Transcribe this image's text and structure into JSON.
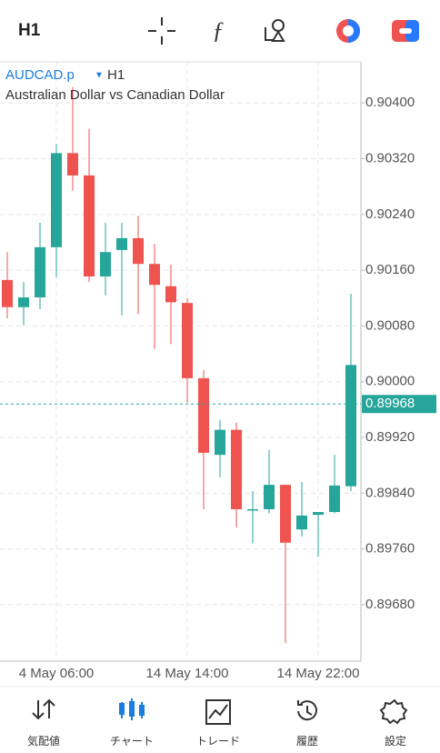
{
  "top_bar": {
    "timeframe": "H1"
  },
  "chart_data": {
    "type": "candlestick",
    "symbol": "AUDCAD.p",
    "timeframe": "H1",
    "subtitle": "Australian Dollar vs Canadian Dollar",
    "categories": [
      null,
      null,
      null,
      "4 May 06:00",
      null,
      null,
      null,
      null,
      null,
      null,
      null,
      "14 May 14:00",
      null,
      null,
      null,
      null,
      null,
      null,
      null,
      "14 May 22:00",
      null,
      null
    ],
    "open": [
      0.90146,
      0.90107,
      0.90121,
      0.90193,
      0.90328,
      0.90296,
      0.90151,
      0.90189,
      0.90206,
      0.90169,
      0.90137,
      0.90113,
      0.90005,
      0.89895,
      0.89931,
      0.89815,
      0.89817,
      0.89852,
      0.89788,
      0.89809,
      0.89813,
      0.8985
    ],
    "high": [
      0.90186,
      0.90143,
      0.90228,
      0.90341,
      0.90423,
      0.90363,
      0.90228,
      0.90228,
      0.90238,
      0.90198,
      0.90168,
      0.9012,
      0.90017,
      0.89945,
      0.89941,
      0.89843,
      0.89902,
      0.89852,
      0.89856,
      0.89813,
      0.89895,
      0.90126
    ],
    "low": [
      0.90091,
      0.90081,
      0.90104,
      0.9015,
      0.90274,
      0.90143,
      0.90124,
      0.90095,
      0.90097,
      0.90047,
      0.90054,
      0.8997,
      0.89817,
      0.89863,
      0.89791,
      0.89768,
      0.89811,
      0.89625,
      0.89778,
      0.89749,
      0.89811,
      0.89843
    ],
    "close": [
      0.90107,
      0.90121,
      0.90193,
      0.90328,
      0.90296,
      0.90151,
      0.90186,
      0.90206,
      0.90169,
      0.90139,
      0.90114,
      0.90005,
      0.89898,
      0.89931,
      0.89817,
      0.89817,
      0.89852,
      0.89769,
      0.89808,
      0.89813,
      0.89851,
      0.90024
    ],
    "up_color": "#26a69a",
    "down_color": "#ef5350",
    "current_price": 0.89968,
    "ylim": [
      0.89599,
      0.90459
    ],
    "yticks": [
      {
        "value": 0.904,
        "label": "0.90400"
      },
      {
        "value": 0.9032,
        "label": "0.90320"
      },
      {
        "value": 0.9024,
        "label": "0.90240"
      },
      {
        "value": 0.9016,
        "label": "0.90160"
      },
      {
        "value": 0.9008,
        "label": "0.90080"
      },
      {
        "value": 0.9,
        "label": "0.90000"
      },
      {
        "value": 0.8992,
        "label": "0.89920"
      },
      {
        "value": 0.8984,
        "label": "0.89840"
      },
      {
        "value": 0.8976,
        "label": "0.89760"
      },
      {
        "value": 0.8968,
        "label": "0.89680"
      }
    ],
    "grid": true
  },
  "nav": {
    "items": [
      "気配値",
      "チャート",
      "トレード",
      "履歴",
      "設定"
    ],
    "active": 1
  }
}
